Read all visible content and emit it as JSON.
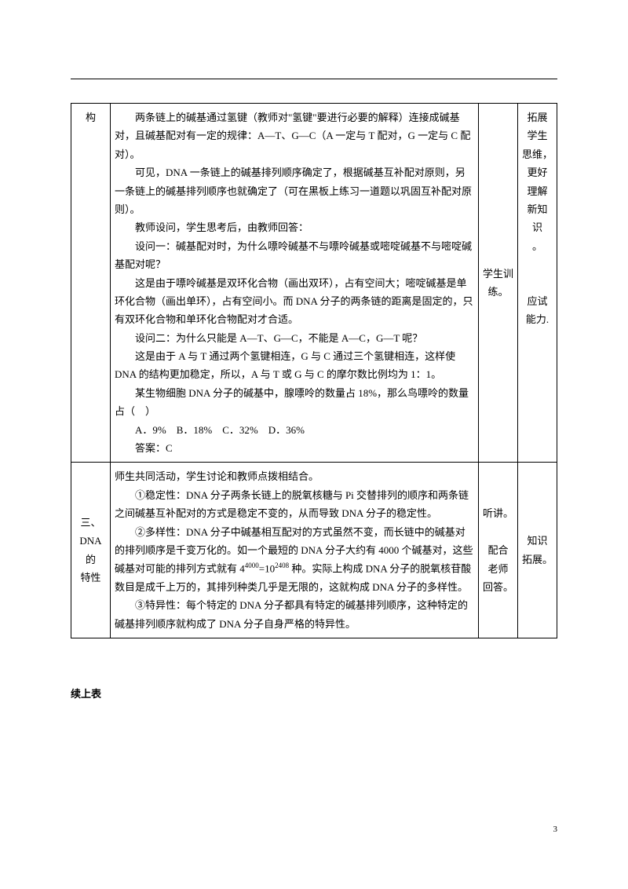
{
  "row1": {
    "col1": "构",
    "col2_paragraphs": [
      "两条链上的碱基通过氢键（教师对\"氢键\"要进行必要的解释）连接成碱基对，且碱基配对有一定的规律：A—T、G—C（A 一定与 T 配对，G 一定与 C 配对）。",
      "可见，DNA 一条链上的碱基排列顺序确定了，根据碱基互补配对原则，另一条链上的碱基排列顺序也就确定了（可在黑板上练习一道题以巩固互补配对原则）。",
      "教师设问，学生思考后，由教师回答：",
      "设问一：碱基配对时，为什么嘌呤碱基不与嘌呤碱基或嘧啶碱基不与嘧啶碱基配对呢？",
      "这是由于嘌呤碱基是双环化合物（画出双环），占有空间大；嘧啶碱基是单环化合物（画出单环），占有空间小。而 DNA 分子的两条链的距离是固定的，只有双环化合物和单环化合物配对才合适。",
      "设问二：为什么只能是 A—T、G—C，不能是 A—C，G—T 呢？",
      "这是由于 A 与 T 通过两个氢键相连，G 与 C 通过三个氢键相连，这样使 DNA 的结构更加稳定，所以，A 与 T 或 G 与 C 的摩尔数比例均为 1：1。",
      "某生物细胞 DNA 分子的碱基中，腺嘌呤的数量占 18%，那么鸟嘌呤的数量占（　）",
      "A．9%　B．18%　C．32%　D．36%",
      "答案：C"
    ],
    "col3": "学生训练。",
    "col4_lines": [
      "拓展",
      "学生",
      "思维，",
      "更好",
      "理解",
      "新知",
      "识",
      "。",
      "",
      "",
      "应试",
      "能力."
    ]
  },
  "row2": {
    "col1_lines": [
      "三、",
      "DNA 的",
      "特性"
    ],
    "col2_intro": "师生共同活动，学生讨论和教师点拨相结合。",
    "col2_para1": "①稳定性：DNA 分子两条长链上的脱氧核糖与 Pi 交替排列的顺序和两条链之间碱基互补配对的方式是稳定不变的，从而导致 DNA 分子的稳定性。",
    "col2_para2_before": "②多样性：DNA 分子中碱基相互配对的方式虽然不变，而长链中的碱基对的排列顺序是千变万化的。如一个最短的 DNA 分子大约有 4000 个碱基对，这些碱基对可能的排列方式就有 4",
    "col2_para2_sup1": "4000",
    "col2_para2_mid": "=10",
    "col2_para2_sup2": "2408",
    "col2_para2_after": " 种。实际上构成 DNA 分子的脱氧核苷酸数目是成千上万的，其排列种类几乎是无限的，这就构成 DNA 分子的多样性。",
    "col2_para3": "③特异性：每个特定的 DNA 分子都具有特定的碱基排列顺序，这种特定的碱基排列顺序就构成了 DNA 分子自身严格的特异性。",
    "col3_lines": [
      "听讲。",
      "",
      "配合",
      "老师",
      "回答。"
    ],
    "col4_lines": [
      "知识",
      "拓展。"
    ]
  },
  "continue_label": "续上表",
  "page_number": "3"
}
